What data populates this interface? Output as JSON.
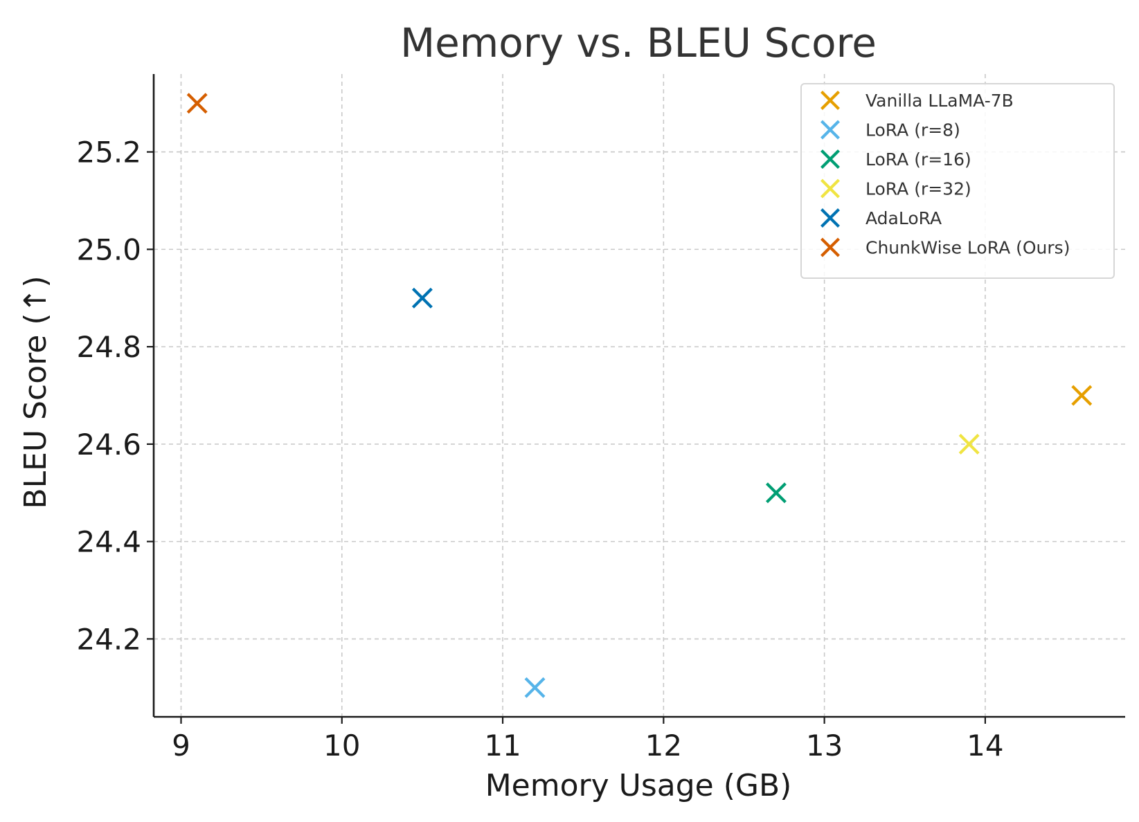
{
  "chart_data": {
    "type": "scatter",
    "title": "Memory vs. BLEU Score",
    "xlabel": "Memory Usage (GB)",
    "ylabel": "BLEU Score (↑)",
    "xlim": [
      8.83,
      14.87
    ],
    "ylim": [
      24.04,
      25.36
    ],
    "xticks": [
      9,
      10,
      11,
      12,
      13,
      14
    ],
    "xtick_labels": [
      "9",
      "10",
      "11",
      "12",
      "13",
      "14"
    ],
    "yticks": [
      24.2,
      24.4,
      24.6,
      24.8,
      25.0,
      25.2
    ],
    "ytick_labels": [
      "24.2",
      "24.4",
      "24.6",
      "24.8",
      "25.0",
      "25.2"
    ],
    "grid": true,
    "legend_position": "top-right",
    "marker": "x",
    "series": [
      {
        "name": "Vanilla LLaMA-7B",
        "color": "#E69F00",
        "x": 14.6,
        "y": 24.7
      },
      {
        "name": "LoRA (r=8)",
        "color": "#56B4E9",
        "x": 11.2,
        "y": 24.1
      },
      {
        "name": "LoRA (r=16)",
        "color": "#009E73",
        "x": 12.7,
        "y": 24.5
      },
      {
        "name": "LoRA (r=32)",
        "color": "#F0E442",
        "x": 13.9,
        "y": 24.6
      },
      {
        "name": "AdaLoRA",
        "color": "#0072B2",
        "x": 10.5,
        "y": 24.9
      },
      {
        "name": "ChunkWise LoRA (Ours)",
        "color": "#D55E00",
        "x": 9.1,
        "y": 25.3
      }
    ]
  }
}
